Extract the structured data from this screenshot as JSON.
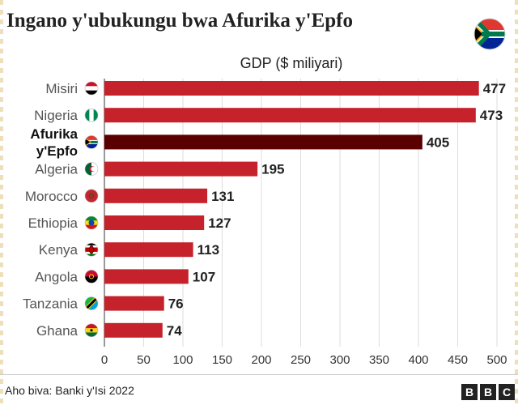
{
  "title": "Ingano y'ubukungu bwa Afurika y'Epfo",
  "source": "Aho biva: Banki y'Isi 2022",
  "logo": [
    "B",
    "B",
    "C"
  ],
  "colors": {
    "bar": "#c5222b",
    "highlight_bar": "#5a0000",
    "grid": "#dddddd",
    "text": "#222222"
  },
  "chart_data": {
    "type": "bar",
    "orientation": "horizontal",
    "title": "GDP ($ miliyari)",
    "categories": [
      "Misiri",
      "Nigeria",
      "Afurika y'Epfo",
      "Algeria",
      "Morocco",
      "Ethiopia",
      "Kenya",
      "Angola",
      "Tanzania",
      "Ghana"
    ],
    "category_lines": [
      [
        "Misiri"
      ],
      [
        "Nigeria"
      ],
      [
        "Afurika",
        "y'Epfo"
      ],
      [
        "Algeria"
      ],
      [
        "Morocco"
      ],
      [
        "Ethiopia"
      ],
      [
        "Kenya"
      ],
      [
        "Angola"
      ],
      [
        "Tanzania"
      ],
      [
        "Ghana"
      ]
    ],
    "values": [
      477,
      473,
      405,
      195,
      131,
      127,
      113,
      107,
      76,
      74
    ],
    "value_labels": [
      "477",
      "473",
      "405",
      "195",
      "131",
      "127",
      "113",
      "107",
      "76",
      "74"
    ],
    "highlight_index": 2,
    "flag_icons": [
      "egypt-flag-icon",
      "nigeria-flag-icon",
      "south-africa-flag-icon",
      "algeria-flag-icon",
      "morocco-flag-icon",
      "ethiopia-flag-icon",
      "kenya-flag-icon",
      "angola-flag-icon",
      "tanzania-flag-icon",
      "ghana-flag-icon"
    ],
    "xlim": [
      0,
      500
    ],
    "xticks": [
      0,
      50,
      100,
      150,
      200,
      250,
      300,
      350,
      400,
      450,
      500
    ],
    "grid": true
  }
}
